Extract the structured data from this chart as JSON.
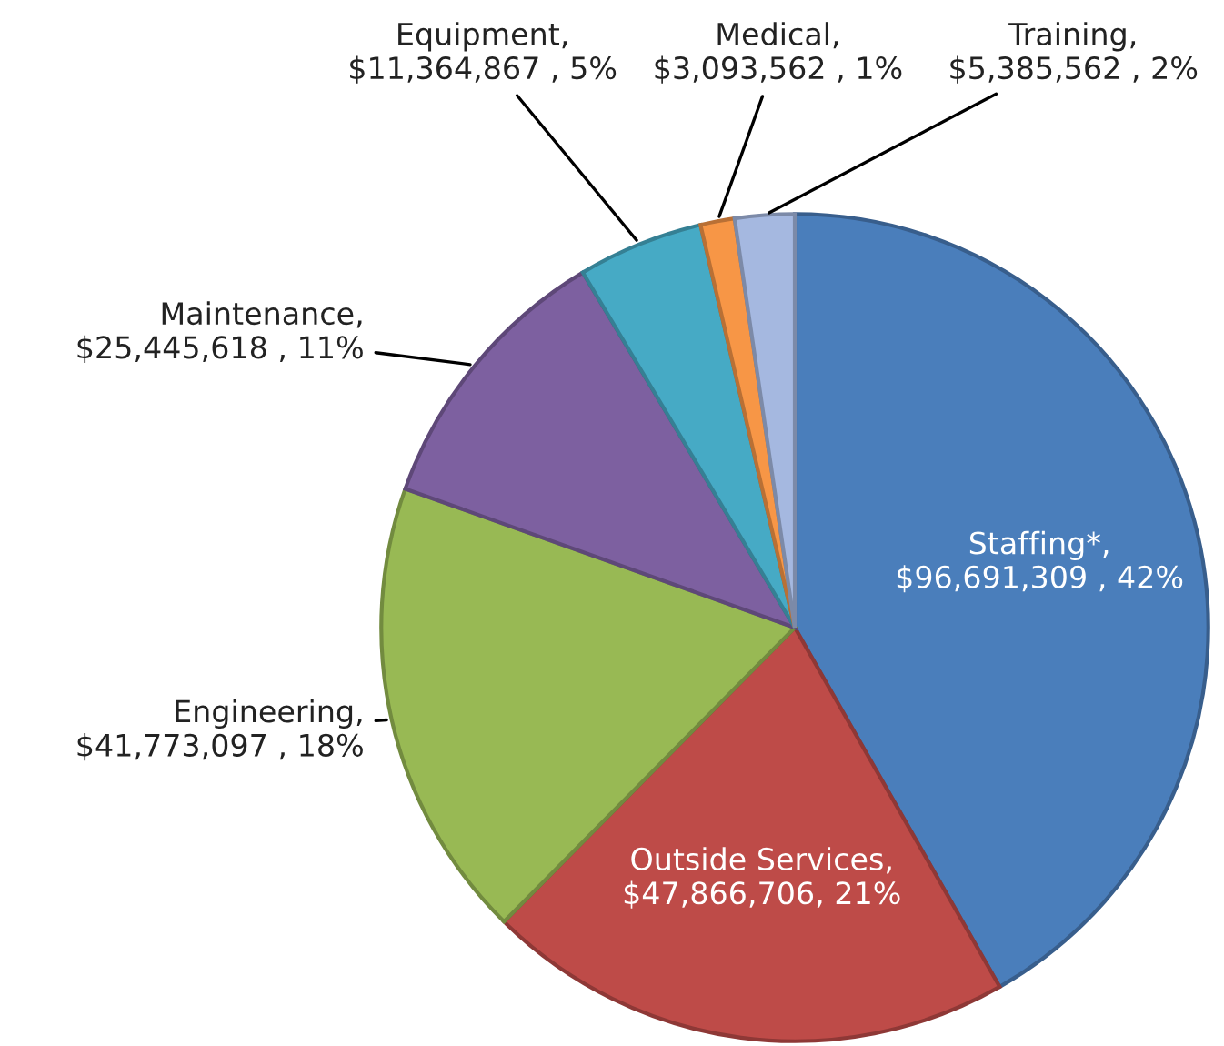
{
  "chart_data": {
    "type": "pie",
    "categories": [
      "Staffing*",
      "Outside Services",
      "Engineering",
      "Maintenance",
      "Equipment",
      "Medical",
      "Training"
    ],
    "values": [
      96691309,
      47866706,
      41773097,
      25445618,
      11364867,
      3093562,
      5385562
    ],
    "value_labels": [
      ", $96,691,309 , 42%",
      ", $47,866,706, 21%",
      ", $41,773,097 , 18%",
      ", $25,445,618 , 11%",
      ", $11,364,867 , 5%",
      ", $3,093,562 , 1%",
      ", $5,385,562 , 2%"
    ],
    "colors": [
      "#4a7ebb",
      "#be4b48",
      "#98b954",
      "#7d60a0",
      "#46aac5",
      "#f79646",
      "#a5b8e0"
    ],
    "legend": false
  }
}
